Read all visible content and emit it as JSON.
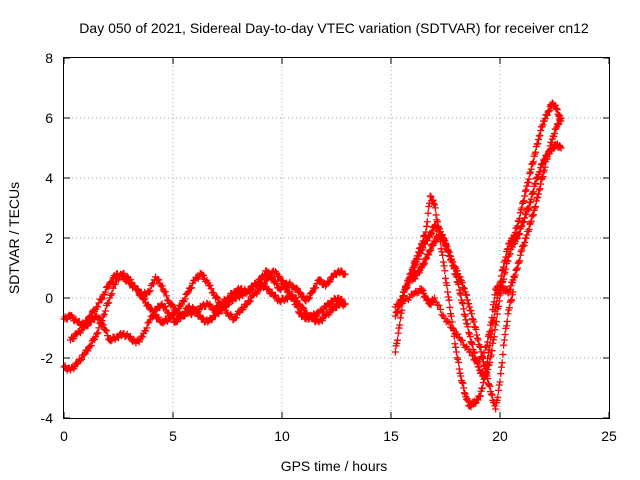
{
  "chart_data": {
    "type": "scatter",
    "title": "Day 050 of 2021, Sidereal Day-to-day VTEC variation (SDTVAR) for receiver cn12",
    "xlabel": "GPS time / hours",
    "ylabel": "SDTVAR / TECUs",
    "xlim": [
      0,
      25
    ],
    "ylim": [
      -4,
      8
    ],
    "x_ticks": [
      0,
      5,
      10,
      15,
      20,
      25
    ],
    "x_tick_labels": [
      "0",
      "5",
      "10",
      "15",
      "20",
      "25"
    ],
    "y_ticks": [
      -4,
      -2,
      0,
      2,
      4,
      6,
      8
    ],
    "y_tick_labels": [
      "-4",
      "-2",
      "0",
      "2",
      "4",
      "6",
      "8"
    ],
    "grid": true,
    "legend": "none",
    "marker": "plus",
    "series_color": "#ff0000",
    "series": [
      {
        "x": [
          0.0,
          0.3,
          0.6,
          0.9,
          1.2,
          1.5,
          1.8,
          2.1,
          2.4,
          2.7,
          3.0,
          3.3,
          3.6,
          3.9,
          4.2,
          4.5,
          4.8,
          5.1,
          5.4,
          5.7,
          6.0,
          6.3,
          6.6,
          6.9,
          7.2,
          7.5,
          7.8,
          8.1,
          8.4,
          8.7,
          9.0,
          9.3,
          9.6,
          9.9,
          10.2,
          10.5,
          10.8,
          11.1,
          11.4,
          11.7,
          12.0,
          12.3,
          12.6,
          12.9
        ],
        "y": [
          -0.7,
          -0.6,
          -0.8,
          -0.9,
          -0.6,
          -0.3,
          0.1,
          0.5,
          0.8,
          0.7,
          0.5,
          0.3,
          0.1,
          0.2,
          0.7,
          0.4,
          -0.1,
          -0.4,
          -0.6,
          -0.5,
          -0.5,
          -0.3,
          -0.2,
          -0.4,
          -0.2,
          0.0,
          0.2,
          0.3,
          0.2,
          0.4,
          0.6,
          0.9,
          0.6,
          0.3,
          0.5,
          0.4,
          0.2,
          -0.1,
          0.2,
          0.6,
          0.4,
          0.7,
          0.9,
          0.8
        ]
      },
      {
        "x": [
          0.0,
          0.3,
          0.6,
          0.9,
          1.2,
          1.5,
          1.8,
          2.1,
          2.4,
          2.7,
          3.0,
          3.3,
          3.6,
          3.9,
          4.2,
          4.5,
          4.8,
          5.1,
          5.4,
          5.7,
          6.0,
          6.3,
          6.6,
          6.9,
          7.2,
          7.5,
          7.8,
          8.1,
          8.4,
          8.7,
          9.0,
          9.3,
          9.6,
          9.9,
          10.2,
          10.5,
          10.8,
          11.1,
          11.4,
          11.7,
          12.0,
          12.3,
          12.6,
          12.9
        ],
        "y": [
          -2.3,
          -2.4,
          -2.2,
          -1.9,
          -1.6,
          -1.2,
          -0.6,
          0.0,
          0.6,
          0.8,
          0.6,
          0.3,
          0.0,
          -0.3,
          -0.6,
          -0.8,
          -0.7,
          -0.5,
          -0.2,
          0.2,
          0.6,
          0.8,
          0.5,
          0.1,
          -0.2,
          -0.5,
          -0.7,
          -0.4,
          -0.2,
          0.1,
          0.3,
          0.6,
          0.9,
          0.7,
          0.3,
          0.0,
          -0.5,
          -0.7,
          -0.6,
          -0.5,
          -0.3,
          -0.1,
          0.0,
          -0.2
        ]
      },
      {
        "x": [
          0.3,
          0.6,
          0.9,
          1.2,
          1.5,
          1.8,
          2.1,
          2.4,
          2.7,
          3.0,
          3.3,
          3.6,
          3.9,
          4.2,
          4.5,
          4.8,
          5.1,
          5.4,
          5.7,
          6.0,
          6.3,
          6.6,
          6.9,
          7.2,
          7.5,
          7.8,
          8.1,
          8.4,
          8.7,
          9.0,
          9.3,
          9.6,
          9.9,
          10.2,
          10.5,
          10.8,
          11.1,
          11.4,
          11.7,
          12.0,
          12.3,
          12.6,
          12.9
        ],
        "y": [
          -1.4,
          -1.2,
          -1.0,
          -0.8,
          -0.6,
          -0.9,
          -1.4,
          -1.3,
          -1.2,
          -1.3,
          -1.5,
          -1.3,
          -0.8,
          -0.4,
          -0.2,
          -0.5,
          -0.8,
          -0.6,
          -0.3,
          -0.4,
          -0.7,
          -0.8,
          -0.6,
          -0.4,
          -0.2,
          0.0,
          0.1,
          0.2,
          0.4,
          0.5,
          0.3,
          0.1,
          -0.1,
          0.0,
          0.1,
          -0.2,
          -0.5,
          -0.7,
          -0.8,
          -0.6,
          -0.4,
          -0.2,
          -0.2
        ]
      },
      {
        "x": [
          15.2,
          15.4,
          15.6,
          15.8,
          16.0,
          16.2,
          16.4,
          16.6,
          16.8,
          17.0,
          17.2,
          17.4,
          17.6,
          17.8,
          18.0,
          18.2,
          18.4,
          18.6,
          18.8,
          19.0,
          19.2,
          19.4,
          19.6,
          19.8,
          20.0,
          20.2,
          20.4,
          20.6,
          20.8,
          21.0,
          21.2,
          21.4,
          21.6,
          21.8,
          22.0,
          22.2,
          22.4,
          22.6,
          22.8
        ],
        "y": [
          -1.8,
          -0.9,
          0.2,
          0.6,
          1.0,
          1.4,
          1.8,
          2.2,
          3.4,
          3.1,
          2.2,
          1.2,
          0.2,
          -0.8,
          -1.8,
          -2.6,
          -3.2,
          -3.6,
          -3.5,
          -3.4,
          -3.0,
          -2.2,
          -1.2,
          -0.3,
          0.5,
          1.2,
          1.8,
          2.0,
          2.4,
          3.0,
          3.6,
          4.2,
          4.8,
          5.4,
          5.9,
          6.2,
          6.5,
          6.3,
          5.9
        ]
      },
      {
        "x": [
          15.2,
          15.4,
          15.6,
          15.8,
          16.0,
          16.2,
          16.4,
          16.6,
          16.8,
          17.0,
          17.2,
          17.4,
          17.6,
          17.8,
          18.0,
          18.2,
          18.4,
          18.6,
          18.8,
          19.0,
          19.2,
          19.4,
          19.6,
          19.8,
          20.0,
          20.2,
          20.4,
          20.6,
          20.8,
          21.0,
          21.2,
          21.4,
          21.6,
          21.8,
          22.0,
          22.2,
          22.4,
          22.6,
          22.8
        ],
        "y": [
          -0.6,
          -0.2,
          0.2,
          0.5,
          0.9,
          1.3,
          1.6,
          1.9,
          2.1,
          2.4,
          2.3,
          2.0,
          1.6,
          1.2,
          0.7,
          0.1,
          -0.6,
          -1.2,
          -1.8,
          -2.3,
          -2.6,
          -2.5,
          -1.9,
          -0.9,
          0.1,
          0.8,
          1.4,
          1.8,
          2.0,
          2.4,
          2.8,
          3.2,
          3.8,
          4.2,
          4.6,
          4.8,
          5.0,
          5.1,
          5.0
        ]
      },
      {
        "x": [
          15.2,
          15.6,
          16.0,
          16.4,
          16.6,
          16.8,
          17.0,
          17.4,
          17.8,
          18.2,
          18.6,
          19.0,
          19.4,
          19.6,
          19.8,
          20.0,
          20.2,
          20.4,
          20.6,
          20.8,
          21.0,
          21.2,
          21.4,
          21.6,
          21.8,
          22.0,
          22.2,
          22.4,
          22.6,
          22.8
        ],
        "y": [
          -0.3,
          -0.1,
          0.1,
          0.3,
          0.0,
          -0.2,
          0.0,
          -0.6,
          -1.0,
          -1.4,
          -1.8,
          -2.2,
          -1.6,
          -0.8,
          0.3,
          0.4,
          0.3,
          0.2,
          0.6,
          1.0,
          1.6,
          2.0,
          2.5,
          3.0,
          3.6,
          4.2,
          4.8,
          5.3,
          5.7,
          6.0
        ]
      },
      {
        "x": [
          16.0,
          16.2,
          16.4,
          16.6,
          16.8,
          17.0,
          17.2,
          17.4,
          17.6,
          17.8,
          18.0,
          18.2,
          18.4,
          18.6,
          18.8,
          19.0,
          19.2,
          19.4,
          19.6,
          19.8,
          20.0,
          20.2,
          20.4,
          20.6
        ],
        "y": [
          0.6,
          0.8,
          1.0,
          1.3,
          1.6,
          1.9,
          2.1,
          2.0,
          1.6,
          1.2,
          0.9,
          0.6,
          0.2,
          -0.3,
          -0.8,
          -1.4,
          -2.0,
          -2.6,
          -3.2,
          -3.7,
          -2.8,
          -1.4,
          -0.4,
          0.2
        ]
      }
    ]
  }
}
